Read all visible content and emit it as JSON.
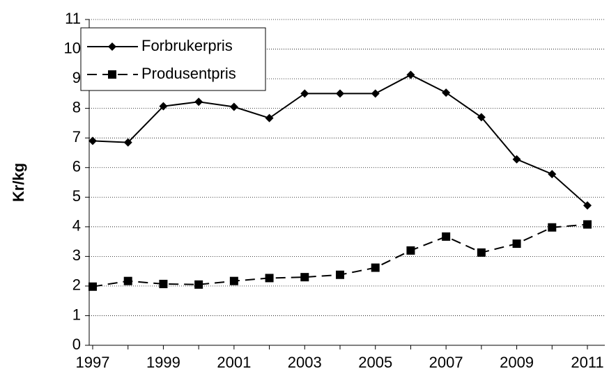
{
  "chart_data": {
    "type": "line",
    "y_label": "Kr/kg",
    "categories": [
      "1997",
      null,
      "1999",
      null,
      "2001",
      null,
      "2003",
      null,
      "2005",
      null,
      "2007",
      null,
      "2009",
      null,
      "2011"
    ],
    "series": [
      {
        "name": "Forbrukerpris",
        "color": "#000000",
        "marker": "diamond",
        "line_style": "solid",
        "values": [
          6.9,
          6.85,
          8.07,
          8.22,
          8.05,
          7.67,
          8.5,
          8.5,
          8.5,
          9.13,
          8.53,
          7.7,
          6.28,
          5.78,
          4.72
        ]
      },
      {
        "name": "Produsentpris",
        "color": "#000000",
        "marker": "square",
        "line_style": "dashed",
        "values": [
          1.98,
          2.17,
          2.07,
          2.05,
          2.17,
          2.27,
          2.3,
          2.38,
          2.62,
          3.2,
          3.67,
          3.13,
          3.43,
          3.98,
          4.08
        ]
      }
    ],
    "ylim": [
      0,
      11
    ],
    "yticks": [
      0,
      1,
      2,
      3,
      4,
      5,
      6,
      7,
      8,
      9,
      10,
      11
    ],
    "grid": true,
    "legend": "top-left"
  }
}
